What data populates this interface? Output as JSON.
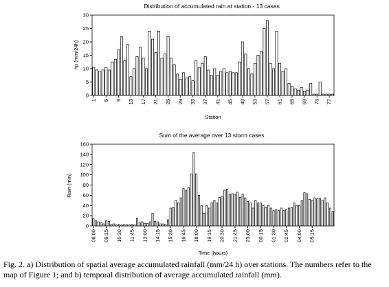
{
  "caption": "Fig. 2. a) Distribution of spatial average accumulated rainfall (mm/24 h) over stations. The numbers refer to the map of Figure 1; and b) temporal distribution of average accumulated rainfall (mm).",
  "chart_data": [
    {
      "type": "bar",
      "title": "Distribution of accumulated rain at station - 13 cases",
      "xlabel": "Station",
      "ylabel": "hp (mm/24h)",
      "ylim": [
        0,
        30
      ],
      "yticks": [
        0,
        5,
        10,
        15,
        20,
        25,
        30
      ],
      "grid": false,
      "legend": "none",
      "x_tick_labels": [
        "1",
        "5",
        "9",
        "13",
        "17",
        "21",
        "25",
        "29",
        "33",
        "37",
        "41",
        "45",
        "49",
        "53",
        "57",
        "61",
        "65",
        "69",
        "73",
        "77"
      ],
      "categories": [
        "1",
        "2",
        "3",
        "4",
        "5",
        "6",
        "7",
        "8",
        "9",
        "10",
        "11",
        "12",
        "13",
        "14",
        "15",
        "16",
        "17",
        "18",
        "19",
        "20",
        "21",
        "22",
        "23",
        "24",
        "25",
        "26",
        "27",
        "28",
        "29",
        "30",
        "31",
        "32",
        "33",
        "34",
        "35",
        "36",
        "37",
        "38",
        "39",
        "40",
        "41",
        "42",
        "43",
        "44",
        "45",
        "46",
        "47",
        "48",
        "49",
        "50",
        "51",
        "52",
        "53",
        "54",
        "55",
        "56",
        "57",
        "58",
        "59",
        "60",
        "61",
        "62",
        "63",
        "64",
        "65",
        "66",
        "67",
        "68",
        "69",
        "70",
        "71",
        "72",
        "73",
        "74",
        "75",
        "76",
        "77",
        "78"
      ],
      "values": [
        10.5,
        9.5,
        9,
        9.5,
        10.5,
        9.5,
        12.5,
        13.5,
        17,
        22,
        13,
        19,
        7,
        10,
        14.5,
        18,
        14,
        10,
        24,
        21,
        16,
        24,
        14,
        15.5,
        22,
        14,
        11.5,
        8,
        6,
        8.5,
        6.5,
        7,
        5.5,
        13,
        10.5,
        12,
        14.5,
        9.5,
        7.5,
        10,
        7.5,
        9,
        10,
        8.5,
        9,
        8.5,
        8.5,
        12.5,
        20,
        15.5,
        10,
        8,
        12,
        15,
        16.5,
        25,
        28,
        12,
        10,
        24,
        12,
        9,
        10,
        4.5,
        3.5,
        2.5,
        2,
        3,
        1.5,
        2,
        4.5,
        0.5,
        0.5,
        5,
        0.5,
        0.5,
        0.5,
        0.5
      ]
    },
    {
      "type": "bar",
      "title": "Sum of the average over 13 storm cases",
      "xlabel": "Time (hours)",
      "ylabel": "Rain (mm)",
      "ylim": [
        0,
        160
      ],
      "yticks": [
        0,
        20,
        40,
        60,
        80,
        100,
        120,
        140,
        160
      ],
      "grid": false,
      "legend": "none",
      "x_tick_labels": [
        "08:00",
        "09:15",
        "10:30",
        "11:45",
        "13:00",
        "14:15",
        "15:30",
        "16:45",
        "18:00",
        "19:15",
        "20:30",
        "21:45",
        "23:00",
        "00:15",
        "01:30",
        "02:45",
        "04:00",
        "05:15"
      ],
      "x_start": "08:00",
      "x_step_minutes": 15,
      "values": [
        14,
        10,
        8,
        6,
        4,
        10,
        9,
        3,
        4,
        2,
        3,
        2,
        3,
        2,
        2,
        3,
        2,
        15,
        6,
        8,
        5,
        5,
        8,
        25,
        9,
        8,
        4,
        4,
        3,
        12,
        35,
        36,
        50,
        45,
        55,
        73,
        70,
        75,
        102,
        144,
        102,
        60,
        40,
        25,
        40,
        35,
        45,
        50,
        45,
        56,
        58,
        70,
        72,
        62,
        63,
        62,
        66,
        56,
        62,
        55,
        48,
        45,
        35,
        50,
        45,
        45,
        40,
        36,
        40,
        35,
        30,
        32,
        30,
        35,
        30,
        32,
        35,
        36,
        45,
        40,
        40,
        50,
        65,
        63,
        52,
        50,
        55,
        53,
        54,
        50,
        55,
        45,
        35,
        28
      ]
    }
  ]
}
